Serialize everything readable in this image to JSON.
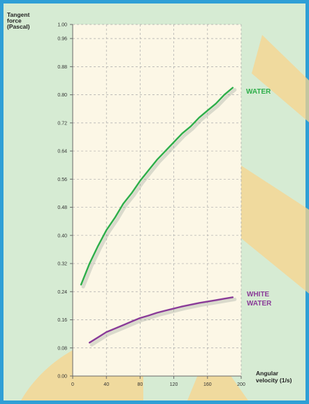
{
  "chart_data": {
    "type": "line",
    "ylabel_lines": [
      "Tangent",
      "force",
      "(Pascal)"
    ],
    "xlabel_lines": [
      "Angular",
      "velocity (1/s)"
    ],
    "xlim": [
      0,
      200
    ],
    "ylim": [
      0,
      1.0
    ],
    "xticks": [
      0,
      40,
      80,
      120,
      160,
      200
    ],
    "yticks": [
      0.0,
      0.08,
      0.16,
      0.24,
      0.32,
      0.4,
      0.48,
      0.56,
      0.64,
      0.72,
      0.8,
      0.88,
      0.96,
      1.0
    ],
    "ytick_labels": [
      "0.00",
      "0.08",
      "0.16",
      "0.24",
      "0.32",
      "0.40",
      "0.48",
      "0.56",
      "0.64",
      "0.72",
      "0.80",
      "0.88",
      "0.96",
      "1.00"
    ],
    "grid": true,
    "series": [
      {
        "name": "WATER",
        "label_lines": [
          "WATER"
        ],
        "color": "#2eae4a",
        "x": [
          10,
          20,
          30,
          40,
          50,
          60,
          70,
          80,
          90,
          100,
          110,
          120,
          130,
          140,
          150,
          160,
          170,
          180,
          190
        ],
        "y": [
          0.26,
          0.32,
          0.37,
          0.415,
          0.45,
          0.49,
          0.52,
          0.555,
          0.585,
          0.615,
          0.64,
          0.665,
          0.69,
          0.71,
          0.735,
          0.755,
          0.775,
          0.8,
          0.82
        ]
      },
      {
        "name": "WHITE WATER",
        "label_lines": [
          "WHITE",
          "WATER"
        ],
        "color": "#8a3c98",
        "x": [
          20,
          30,
          40,
          50,
          60,
          70,
          80,
          90,
          100,
          110,
          120,
          130,
          140,
          150,
          160,
          170,
          180,
          190
        ],
        "y": [
          0.095,
          0.11,
          0.125,
          0.135,
          0.145,
          0.155,
          0.165,
          0.172,
          0.18,
          0.186,
          0.192,
          0.198,
          0.203,
          0.208,
          0.212,
          0.216,
          0.22,
          0.224
        ]
      }
    ]
  },
  "colors": {
    "border": "#2f9fd6",
    "background": "#d6ebd3",
    "plot_area": "#fcf7e6",
    "accent_bars": "#f8d48c",
    "axis": "#6a6a6a",
    "grid": "#a9a9a9"
  }
}
